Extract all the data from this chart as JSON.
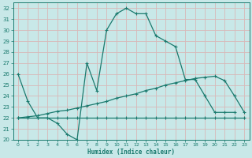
{
  "xlabel": "Humidex (Indice chaleur)",
  "bg_color": "#c8e8e8",
  "grid_color": "#e0b8b8",
  "line_color": "#1a7a6e",
  "xlim": [
    -0.5,
    23.5
  ],
  "ylim": [
    20,
    32.5
  ],
  "xticks": [
    0,
    1,
    2,
    3,
    4,
    5,
    6,
    7,
    8,
    9,
    10,
    11,
    12,
    13,
    14,
    15,
    16,
    17,
    18,
    19,
    20,
    21,
    22,
    23
  ],
  "yticks": [
    20,
    21,
    22,
    23,
    24,
    25,
    26,
    27,
    28,
    29,
    30,
    31,
    32
  ],
  "series": [
    {
      "x": [
        0,
        1,
        2,
        3,
        4,
        5,
        6,
        7,
        8,
        9,
        10,
        11,
        12,
        13,
        14,
        15,
        16,
        17,
        18,
        19,
        20,
        21,
        22
      ],
      "y": [
        26.0,
        23.5,
        22.0,
        22.0,
        21.5,
        20.5,
        20.0,
        27.0,
        24.5,
        30.0,
        31.5,
        32.0,
        31.5,
        31.5,
        29.5,
        29.0,
        28.5,
        25.5,
        25.5,
        24.0,
        22.5,
        22.5,
        22.5
      ]
    },
    {
      "x": [
        0,
        1,
        2,
        3,
        4,
        5,
        6,
        7,
        8,
        9,
        10,
        11,
        12,
        13,
        14,
        15,
        16,
        17,
        18,
        19,
        20,
        21,
        22,
        23
      ],
      "y": [
        22.0,
        22.0,
        22.0,
        22.0,
        22.0,
        22.0,
        22.0,
        22.0,
        22.0,
        22.0,
        22.0,
        22.0,
        22.0,
        22.0,
        22.0,
        22.0,
        22.0,
        22.0,
        22.0,
        22.0,
        22.0,
        22.0,
        22.0,
        22.0
      ]
    },
    {
      "x": [
        0,
        1,
        2,
        3,
        4,
        5,
        6,
        7,
        8,
        9,
        10,
        11,
        12,
        13,
        14,
        15,
        16,
        17,
        18,
        19,
        20,
        21,
        22,
        23
      ],
      "y": [
        22.0,
        22.1,
        22.2,
        22.4,
        22.6,
        22.7,
        22.9,
        23.1,
        23.3,
        23.5,
        23.8,
        24.0,
        24.2,
        24.5,
        24.7,
        25.0,
        25.2,
        25.4,
        25.6,
        25.7,
        25.8,
        25.4,
        24.0,
        22.5
      ]
    }
  ]
}
